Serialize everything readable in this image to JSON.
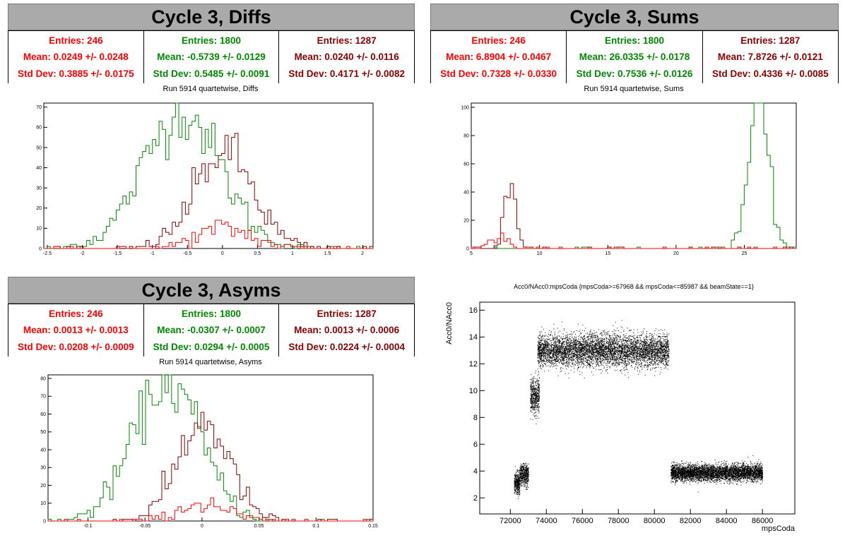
{
  "panels": [
    {
      "id": "diffs",
      "title": "Cycle 3, Diffs",
      "subtitle": "Run 5914 quartetwise, Diffs",
      "stats": [
        {
          "color": "#ff0000",
          "entries": "Entries: 246",
          "mean": "Mean: 0.0249 +/- 0.0248",
          "std": "Std Dev: 0.3885 +/- 0.0175"
        },
        {
          "color": "#008800",
          "entries": "Entries: 1800",
          "mean": "Mean: -0.5739 +/- 0.0129",
          "std": "Std Dev: 0.5485 +/- 0.0091"
        },
        {
          "color": "#880000",
          "entries": "Entries: 1287",
          "mean": "Mean: 0.0240 +/- 0.0116",
          "std": "Std Dev: 0.4171 +/- 0.0082"
        }
      ]
    },
    {
      "id": "sums",
      "title": "Cycle 3, Sums",
      "subtitle": "Run 5914 quartetwise, Sums",
      "stats": [
        {
          "color": "#ff0000",
          "entries": "Entries: 246",
          "mean": "Mean: 6.8904 +/- 0.0467",
          "std": "Std Dev: 0.7328 +/- 0.0330"
        },
        {
          "color": "#008800",
          "entries": "Entries: 1800",
          "mean": "Mean: 26.0335 +/- 0.0178",
          "std": "Std Dev: 0.7536 +/- 0.0126"
        },
        {
          "color": "#880000",
          "entries": "Entries: 1287",
          "mean": "Mean: 7.8726 +/- 0.0121",
          "std": "Std Dev: 0.4336 +/- 0.0085"
        }
      ]
    },
    {
      "id": "asyms",
      "title": "Cycle 3, Asyms",
      "subtitle": "Run 5914 quartetwise, Asyms",
      "stats": [
        {
          "color": "#ff0000",
          "entries": "Entries: 246",
          "mean": "Mean: 0.0013 +/- 0.0013",
          "std": "Std Dev: 0.0208 +/- 0.0009"
        },
        {
          "color": "#008800",
          "entries": "Entries: 1800",
          "mean": "Mean: -0.0307 +/- 0.0007",
          "std": "Std Dev: 0.0294 +/- 0.0005"
        },
        {
          "color": "#880000",
          "entries": "Entries: 1287",
          "mean": "Mean: 0.0013 +/- 0.0006",
          "std": "Std Dev: 0.0224 +/- 0.0004"
        }
      ]
    }
  ],
  "chart_data": [
    {
      "id": "diffs",
      "type": "histogram",
      "xlim": [
        -2.55,
        2.15
      ],
      "ylim": [
        0,
        72
      ],
      "xticks": [
        -2.5,
        -2,
        -1.5,
        -1,
        -0.5,
        0,
        0.5,
        1,
        1.5,
        2
      ],
      "xtick_labels": [
        "-2.5",
        "-2",
        "-1.5",
        "-1",
        "-0.5",
        "0",
        "0.5",
        "1",
        "1.5",
        "2"
      ],
      "yticks": [
        0,
        10,
        20,
        30,
        40,
        50,
        60,
        70
      ],
      "series": [
        {
          "color": "#008800",
          "mean": -0.5739,
          "std": 0.5485,
          "peak": 68
        },
        {
          "color": "#880000",
          "mean": 0.024,
          "std": 0.4171,
          "peak": 48
        },
        {
          "color": "#ff0000",
          "mean": 0.0249,
          "std": 0.3885,
          "peak": 10
        }
      ]
    },
    {
      "id": "sums",
      "type": "histogram",
      "xlim": [
        5,
        28.8
      ],
      "ylim": [
        0,
        103
      ],
      "xticks": [
        5,
        10,
        15,
        20,
        25
      ],
      "xtick_labels": [
        "5",
        "10",
        "15",
        "20",
        "25"
      ],
      "yticks": [
        0,
        20,
        40,
        60,
        80,
        100
      ],
      "series": [
        {
          "color": "#008800",
          "mean": 26.0335,
          "std": 0.7536,
          "peak": 98
        },
        {
          "color": "#880000",
          "mean": 7.8726,
          "std": 0.4336,
          "peak": 48
        },
        {
          "color": "#ff0000",
          "mean": 6.8904,
          "std": 0.7328,
          "peak": 8
        }
      ]
    },
    {
      "id": "asyms",
      "type": "histogram",
      "xlim": [
        -0.135,
        0.15
      ],
      "ylim": [
        0,
        82
      ],
      "xticks": [
        -0.1,
        -0.05,
        0,
        0.05,
        0.1,
        0.15
      ],
      "xtick_labels": [
        "-0.1",
        "-0.05",
        "0",
        "0.05",
        "0.1",
        "0.15"
      ],
      "yticks": [
        0,
        10,
        20,
        30,
        40,
        50,
        60,
        70,
        80
      ],
      "series": [
        {
          "color": "#008800",
          "mean": -0.0307,
          "std": 0.0294,
          "peak": 78
        },
        {
          "color": "#880000",
          "mean": 0.0013,
          "std": 0.0224,
          "peak": 56
        },
        {
          "color": "#ff0000",
          "mean": 0.0013,
          "std": 0.0208,
          "peak": 10
        }
      ]
    },
    {
      "id": "scatter",
      "type": "scatter",
      "title": "Acc0/NAcc0:mpsCoda {mpsCoda>=67968 && mpsCoda<=85987 && beamState==1}",
      "xlabel": "mpsCoda",
      "ylabel": "Acc0/NAcc0",
      "xlim": [
        70300,
        87800
      ],
      "ylim": [
        0.8,
        16.6
      ],
      "xticks": [
        72000,
        74000,
        76000,
        78000,
        80000,
        82000,
        84000,
        86000
      ],
      "xtick_labels": [
        "72000",
        "74000",
        "76000",
        "78000",
        "80000",
        "82000",
        "84000",
        "86000"
      ],
      "yticks": [
        2,
        4,
        6,
        8,
        10,
        12,
        14,
        16
      ],
      "clusters": [
        {
          "x": [
            72200,
            72500
          ],
          "ymean": 3.1,
          "ysd": 0.4,
          "n": 350
        },
        {
          "x": [
            72500,
            73000
          ],
          "ymean": 3.7,
          "ysd": 0.4,
          "n": 500
        },
        {
          "x": [
            73100,
            73600
          ],
          "ymean": 9.6,
          "ysd": 0.7,
          "n": 500
        },
        {
          "x": [
            73500,
            80800
          ],
          "ymean": 13.0,
          "ysd": 0.6,
          "n": 5500
        },
        {
          "x": [
            80900,
            86000
          ],
          "ymean": 3.9,
          "ysd": 0.3,
          "n": 4500
        }
      ]
    }
  ]
}
